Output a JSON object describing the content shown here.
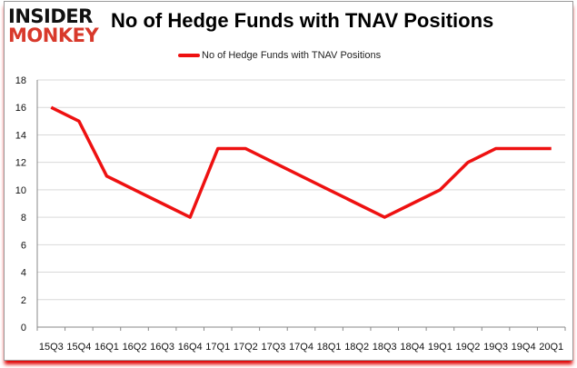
{
  "logo": {
    "line1": "INSIDER",
    "line2": "MONKEY"
  },
  "chart_data": {
    "type": "line",
    "title": "No of Hedge Funds with TNAV Positions",
    "categories": [
      "15Q3",
      "15Q4",
      "16Q1",
      "16Q2",
      "16Q3",
      "16Q4",
      "17Q1",
      "17Q2",
      "17Q3",
      "17Q4",
      "18Q1",
      "18Q2",
      "18Q3",
      "18Q4",
      "19Q1",
      "19Q2",
      "19Q3",
      "19Q4",
      "20Q1"
    ],
    "series": [
      {
        "name": "No of Hedge Funds with TNAV Positions",
        "color": "#ee1111",
        "values": [
          16,
          15,
          11,
          10,
          9,
          8,
          13,
          13,
          12,
          11,
          10,
          9,
          8,
          9,
          10,
          12,
          13,
          13,
          13
        ]
      }
    ],
    "yticks": [
      0,
      2,
      4,
      6,
      8,
      10,
      12,
      14,
      16,
      18
    ],
    "ylim": [
      0,
      18
    ],
    "xlabel": "",
    "ylabel": "",
    "grid": true,
    "legend": "top-center"
  }
}
